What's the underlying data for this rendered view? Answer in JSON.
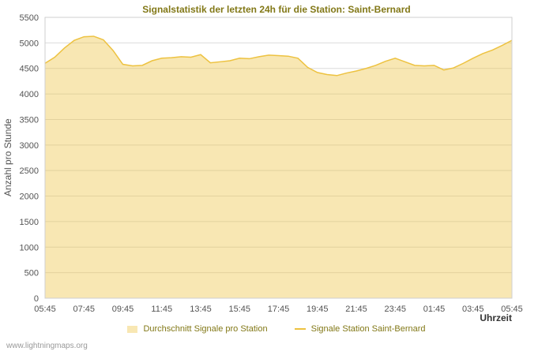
{
  "footer": {
    "watermark": "www.lightningmaps.org"
  },
  "chart_data": {
    "type": "area",
    "title": "Signalstatistik der letzten 24h für die Station: Saint-Bernard",
    "xlabel": "Uhrzeit",
    "ylabel": "Anzahl pro Stunde",
    "ylim": [
      0,
      5500
    ],
    "yticks": [
      0,
      500,
      1000,
      1500,
      2000,
      2500,
      3000,
      3500,
      4000,
      4500,
      5000,
      5500
    ],
    "grid": true,
    "legend_position": "bottom",
    "x_start": "05:45",
    "x_interval_minutes": 30,
    "xticks": [
      {
        "i": 0,
        "label": "05:45"
      },
      {
        "i": 4,
        "label": "07:45"
      },
      {
        "i": 8,
        "label": "09:45"
      },
      {
        "i": 12,
        "label": "11:45"
      },
      {
        "i": 16,
        "label": "13:45"
      },
      {
        "i": 20,
        "label": "15:45"
      },
      {
        "i": 24,
        "label": "17:45"
      },
      {
        "i": 28,
        "label": "19:45"
      },
      {
        "i": 32,
        "label": "21:45"
      },
      {
        "i": 36,
        "label": "23:45"
      },
      {
        "i": 40,
        "label": "01:45"
      },
      {
        "i": 44,
        "label": "03:45"
      },
      {
        "i": 48,
        "label": "05:45"
      }
    ],
    "series": [
      {
        "name": "Durchschnitt Signale pro Station",
        "type": "area",
        "color": "#EDC240",
        "fill": "rgba(237,194,64,0.4)",
        "values": [
          4600,
          4720,
          4900,
          5050,
          5120,
          5130,
          5060,
          4850,
          4580,
          4550,
          4560,
          4650,
          4700,
          4710,
          4730,
          4720,
          4770,
          4610,
          4630,
          4650,
          4700,
          4690,
          4730,
          4760,
          4750,
          4740,
          4700,
          4520,
          4420,
          4380,
          4360,
          4410,
          4450,
          4500,
          4560,
          4640,
          4700,
          4630,
          4560,
          4550,
          4560,
          4470,
          4510,
          4600,
          4700,
          4790,
          4860,
          4950,
          5050
        ]
      },
      {
        "name": "Signale Station Saint-Bernard",
        "type": "line",
        "color": "#EDC240",
        "values": [
          4600,
          4720,
          4900,
          5050,
          5120,
          5130,
          5060,
          4850,
          4580,
          4550,
          4560,
          4650,
          4700,
          4710,
          4730,
          4720,
          4770,
          4610,
          4630,
          4650,
          4700,
          4690,
          4730,
          4760,
          4750,
          4740,
          4700,
          4520,
          4420,
          4380,
          4360,
          4410,
          4450,
          4500,
          4560,
          4640,
          4700,
          4630,
          4560,
          4550,
          4560,
          4470,
          4510,
          4600,
          4700,
          4790,
          4860,
          4950,
          5050
        ]
      }
    ],
    "colors": {
      "grid": "#dcdcdc",
      "border": "#cfcfcf",
      "tick_text": "#545454",
      "title_text": "#827817",
      "legend_text": "#827817"
    }
  }
}
